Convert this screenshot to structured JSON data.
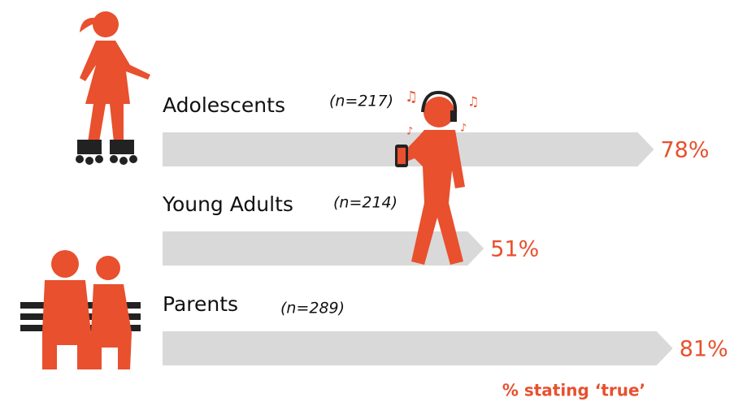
{
  "chart_data": {
    "type": "bar",
    "orientation": "horizontal",
    "categories": [
      "Adolescents",
      "Young Adults",
      "Parents"
    ],
    "values": [
      78,
      51,
      81
    ],
    "value_labels": [
      "78%",
      "51%",
      "81%"
    ],
    "sample_sizes": [
      "(n=217)",
      "(n=214)",
      "(n=289)"
    ],
    "note": "% stating ‘true’",
    "color": "#d9d9d9",
    "label_color": "#e8502e"
  }
}
